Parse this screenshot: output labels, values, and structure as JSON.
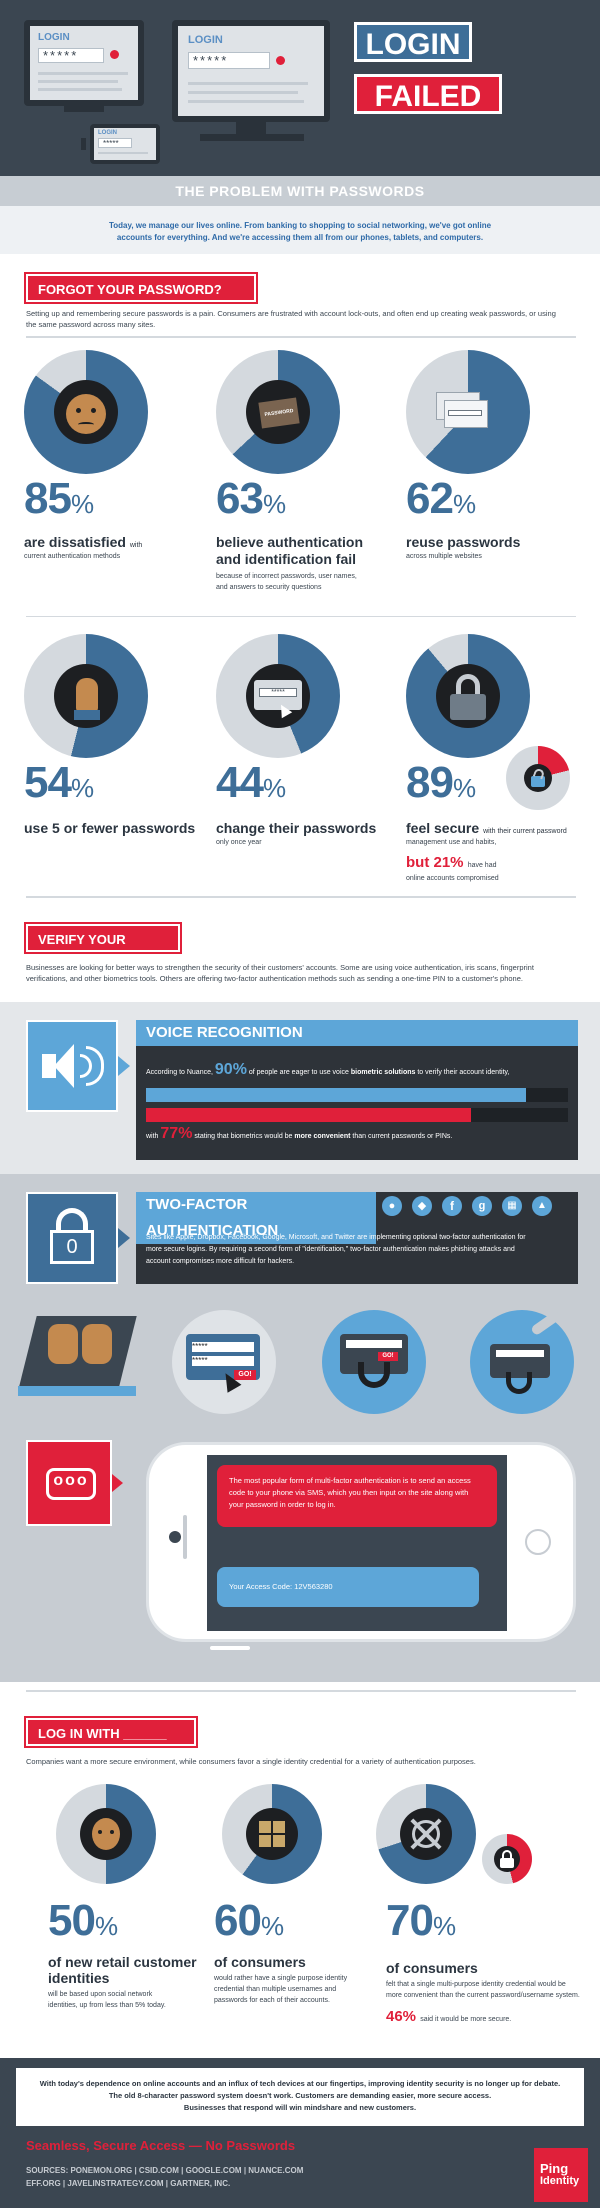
{
  "hero": {
    "screen1_label": "LOGIN",
    "screen2_label": "LOGIN",
    "phone_label": "LOGIN",
    "password_mask": "*****",
    "banner_line1": "LOGIN",
    "banner_line2": "FAILED"
  },
  "problem": {
    "heading": "THE PROBLEM WITH PASSWORDS",
    "intro_line1": "Today, we manage our lives online. From banking to shopping to social networking, we've got online",
    "intro_line2": "accounts for everything. And we're accessing them all from our phones, tablets, and computers."
  },
  "forgot": {
    "tag": "FORGOT YOUR PASSWORD?",
    "body_line1": "Setting up and remembering secure passwords is a pain. Consumers are frustrated with account lock-outs, and often end up creating weak passwords, or using",
    "body_line2": "the same password across many sites.",
    "stats": [
      {
        "value": "85",
        "unit": "%",
        "title": "are dissatisfied",
        "title_tail": "with",
        "sub1": "current authentication methods",
        "sub2": "",
        "sub3": ""
      },
      {
        "value": "63",
        "unit": "%",
        "title": "believe authentication",
        "title2": "and identification fail",
        "sub1": "because of incorrect passwords, user names,",
        "sub2": "and answers to security questions"
      },
      {
        "value": "62",
        "unit": "%",
        "title": "reuse passwords",
        "sub1": "across multiple websites"
      },
      {
        "value": "54",
        "unit": "%",
        "title": "use 5 or fewer passwords"
      },
      {
        "value": "44",
        "unit": "%",
        "title": "change their passwords",
        "sub1": "only once year"
      },
      {
        "value": "89",
        "unit": "%",
        "title": "feel secure",
        "title_tail": "with their current password",
        "sub1": "management use and habits,",
        "but": "but 21%",
        "but_tail": "have had",
        "sub2": "online accounts compromised"
      }
    ],
    "donut_fractions": [
      0.85,
      0.63,
      0.62,
      0.54,
      0.44,
      0.89
    ],
    "icon_password_label": "PASSWORD"
  },
  "verify": {
    "tag": "VERIFY YOUR ACCOUNT",
    "body_line1": "Businesses are looking for better ways to strengthen the security of their customers' accounts. Some are using voice authentication, iris scans, fingerprint",
    "body_line2": "verifications, and other biometrics tools. Others are offering two-factor authentication methods such as sending a one-time PIN to a customer's phone."
  },
  "voice": {
    "heading": "VOICE RECOGNITION",
    "line1_pre": "According to Nuance,",
    "line1_pct": "90%",
    "line1_mid": "of people are eager to use voice",
    "line1_bold": "biometric solutions",
    "line1_post": "to verify their account identity,",
    "line2_pre": "with",
    "line2_pct": "77%",
    "line2_mid": "stating that biometrics would be",
    "line2_bold": "more convenient",
    "line2_post": "than current passwords or PINs.",
    "bar1_fraction": 0.9,
    "bar2_fraction": 0.77
  },
  "twofactor": {
    "heading": "TWO-FACTOR AUTHENTICATION",
    "lock_digit": "0",
    "body_line1": "Sites like Apple, Dropbox, Facebook, Google, Microsoft, and Twitter are implementing optional two-factor authentication for",
    "body_line2": "more secure logins. By requiring a second form of \"identification,\" two-factor authentication makes phishing attacks and",
    "body_line3": "account compromises more difficult for hackers.",
    "social_icons": [
      "apple-icon",
      "dropbox-icon",
      "facebook-icon",
      "google-icon",
      "windows-icon",
      "twitter-icon"
    ],
    "go_label": "GO!",
    "sms_message_line1": "The most popular form of multi-factor authentication is to send an access",
    "sms_message_line2": "code to your phone via SMS, which you then input on the site along with",
    "sms_message_line3": "your password in order to log in.",
    "sms_code": "Your Access Code: 12V563280",
    "chat_icon_dots": "ooo"
  },
  "loginwith": {
    "tag": "LOG IN WITH ______",
    "body": "Companies want a more secure environment, while consumers favor a single identity credential for a variety of authentication purposes.",
    "stats": [
      {
        "value": "50",
        "unit": "%",
        "title": "of new retail customer",
        "title2": "identities",
        "sub1": "will be based upon social network",
        "sub2": "identities, up from less than 5% today."
      },
      {
        "value": "60",
        "unit": "%",
        "title": "of consumers",
        "sub1": "would rather have a single purpose identity",
        "sub2": "credential than multiple usernames and",
        "sub3": "passwords for each of their accounts."
      },
      {
        "value": "70",
        "unit": "%",
        "title": "of consumers",
        "sub1": "felt that a single multi-purpose identity credential would be",
        "sub2": "more convenient than the current password/username system.",
        "extra_pct": "46%",
        "extra_tail": "said it would be more secure."
      }
    ],
    "donut_fractions": [
      0.5,
      0.6,
      0.7
    ]
  },
  "footer": {
    "summary_line1": "With today's dependence on online accounts and an influx of tech devices at our fingertips, improving identity security is no longer up for debate.",
    "summary_line2": "The old 8-character password system doesn't work. Customers are demanding easier, more secure access.",
    "summary_line3": "Businesses that respond will win mindshare and new customers.",
    "slogan": "Seamless, Secure Access — No Passwords",
    "sources_line1": "SOURCES: PONEMON.ORG | CSID.COM | GOOGLE.COM | NUANCE.COM",
    "sources_line2": "EFF.ORG | JAVELINSTRATEGY.COM | GARTNER, INC.",
    "logo_line1": "Ping",
    "logo_line2": "Identity"
  },
  "colors": {
    "red": "#e0203a",
    "blue": "#3e6e98",
    "light_blue": "#5da6d8",
    "gray": "#d4d9de",
    "dark": "#2e3339"
  }
}
